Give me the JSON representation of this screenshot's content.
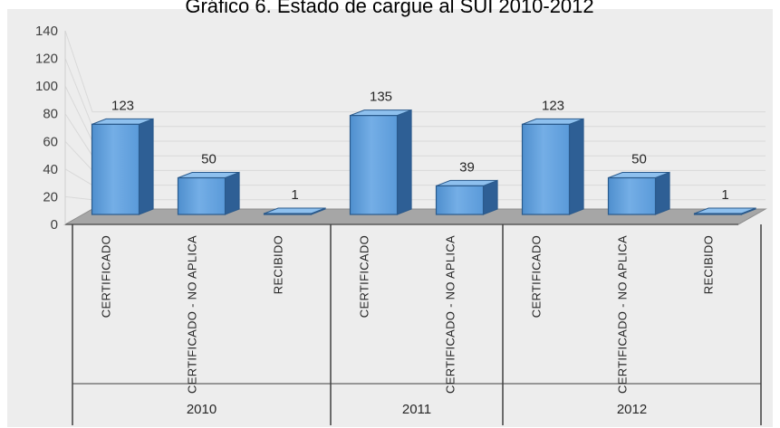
{
  "chart_data": {
    "type": "bar",
    "title": "Gráfico 6. Estado de cargue al SUI 2010-2012",
    "xlabel": "",
    "ylabel": "",
    "ylim": [
      0,
      140
    ],
    "yticks": [
      0,
      20,
      40,
      60,
      80,
      100,
      120,
      140
    ],
    "grid": true,
    "legend": "none",
    "style": "3d-column",
    "colors": {
      "bar": "#5b9bd5",
      "bar_dark": "#2e5f95",
      "floor": "#a6a6a6",
      "plot_bg": "#ededed",
      "grid": "#d9d9d9"
    },
    "groups": [
      {
        "label": "2010",
        "categories": [
          "CERTIFICADO",
          "CERTIFICADO - NO APLICA",
          "RECIBIDO"
        ],
        "values": [
          123,
          50,
          1
        ]
      },
      {
        "label": "2011",
        "categories": [
          "CERTIFICADO",
          "CERTIFICADO - NO APLICA"
        ],
        "values": [
          135,
          39
        ]
      },
      {
        "label": "2012",
        "categories": [
          "CERTIFICADO",
          "CERTIFICADO - NO APLICA",
          "RECIBIDO"
        ],
        "values": [
          123,
          50,
          1
        ]
      }
    ]
  }
}
